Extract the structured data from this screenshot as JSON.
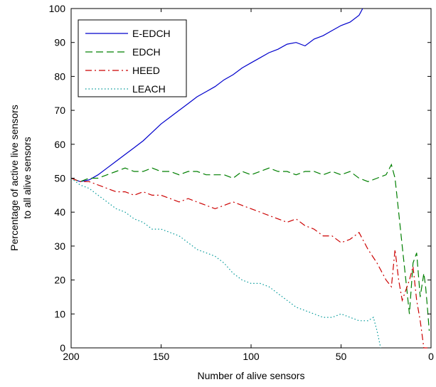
{
  "chart_data": {
    "type": "line",
    "title": "",
    "xlabel": "Number of alive sensors",
    "ylabel_lines": [
      "Percentage of active live sensors",
      "to all alive sensors"
    ],
    "xlim": [
      200,
      0
    ],
    "ylim": [
      0,
      100
    ],
    "x_reversed": true,
    "xticks": [
      200,
      150,
      100,
      50,
      0
    ],
    "yticks": [
      0,
      10,
      20,
      30,
      40,
      50,
      60,
      70,
      80,
      90,
      100
    ],
    "xtick_labels": [
      "200",
      "150",
      "100",
      "50",
      "0"
    ],
    "ytick_labels": [
      "0",
      "10",
      "20",
      "30",
      "40",
      "50",
      "60",
      "70",
      "80",
      "90",
      "100"
    ],
    "grid": false,
    "legend_position": "top-left",
    "series": [
      {
        "name": "E-EDCH",
        "color": "#0000cc",
        "style": "solid",
        "x": [
          200,
          195,
          190,
          185,
          180,
          175,
          170,
          165,
          160,
          155,
          150,
          145,
          140,
          135,
          130,
          125,
          120,
          115,
          110,
          105,
          100,
          95,
          90,
          85,
          80,
          75,
          70,
          65,
          60,
          55,
          50,
          45,
          40,
          38
        ],
        "y": [
          50,
          49,
          49.5,
          51,
          53,
          55,
          57,
          59,
          61,
          63.5,
          66,
          68,
          70,
          72,
          74,
          75.5,
          77,
          79,
          80.5,
          82.5,
          84,
          85.5,
          87,
          88,
          89.5,
          90,
          89,
          91,
          92,
          93.5,
          95,
          96,
          98,
          100
        ]
      },
      {
        "name": "EDCH",
        "color": "#007f00",
        "style": "dashed",
        "x": [
          200,
          195,
          190,
          185,
          180,
          175,
          170,
          165,
          160,
          155,
          150,
          145,
          140,
          135,
          130,
          125,
          120,
          115,
          110,
          105,
          100,
          95,
          90,
          85,
          80,
          75,
          70,
          65,
          60,
          55,
          50,
          45,
          40,
          35,
          30,
          25,
          22,
          20,
          18,
          16,
          14,
          12,
          10,
          8,
          6,
          4,
          3,
          2,
          1
        ],
        "y": [
          50,
          49,
          50,
          50,
          51,
          52,
          53,
          52,
          52,
          53,
          52,
          52,
          51,
          52,
          52,
          51,
          51,
          51,
          50,
          52,
          51,
          52,
          53,
          52,
          52,
          51,
          52,
          52,
          51,
          52,
          51,
          52,
          50,
          49,
          50,
          51,
          54,
          50,
          40,
          30,
          20,
          10,
          25,
          28,
          15,
          22,
          18,
          12,
          5
        ]
      },
      {
        "name": "HEED",
        "color": "#cc0000",
        "style": "dashdot",
        "x": [
          200,
          195,
          190,
          185,
          180,
          175,
          170,
          165,
          160,
          155,
          150,
          145,
          140,
          135,
          130,
          125,
          120,
          115,
          110,
          105,
          100,
          95,
          90,
          85,
          80,
          75,
          70,
          65,
          60,
          55,
          50,
          45,
          40,
          35,
          30,
          25,
          22,
          20,
          18,
          16,
          14,
          12,
          10,
          8,
          6,
          4,
          2
        ],
        "y": [
          50,
          49,
          49,
          48,
          47,
          46,
          46,
          45,
          46,
          45,
          45,
          44,
          43,
          44,
          43,
          42,
          41,
          42,
          43,
          42,
          41,
          40,
          39,
          38,
          37,
          38,
          36,
          35,
          33,
          33,
          31,
          32,
          34,
          29,
          25,
          20,
          18,
          29,
          20,
          14,
          17,
          20,
          24,
          14,
          8,
          0,
          0
        ]
      },
      {
        "name": "LEACH",
        "color": "#009999",
        "style": "dotted",
        "x": [
          200,
          195,
          190,
          185,
          180,
          175,
          170,
          165,
          160,
          155,
          150,
          145,
          140,
          135,
          130,
          125,
          120,
          115,
          110,
          105,
          100,
          95,
          90,
          85,
          80,
          75,
          70,
          65,
          60,
          55,
          50,
          45,
          40,
          35,
          32,
          30,
          28
        ],
        "y": [
          50,
          48,
          47,
          45,
          43,
          41,
          40,
          38,
          37,
          35,
          35,
          34,
          33,
          31,
          29,
          28,
          27,
          25,
          22,
          20,
          19,
          19,
          18,
          16,
          14,
          12,
          11,
          10,
          9,
          9,
          10,
          9,
          8,
          8,
          9,
          5,
          0
        ]
      }
    ]
  }
}
